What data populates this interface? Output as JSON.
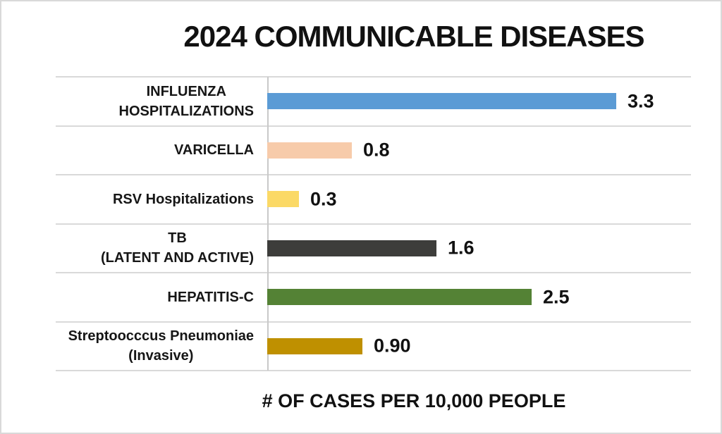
{
  "chart_data": {
    "type": "bar",
    "orientation": "horizontal",
    "title": "2024 COMMUNICABLE DISEASES",
    "xlabel": "# OF CASES PER 10,000 PEOPLE",
    "ylabel": "",
    "xlim": [
      0,
      4
    ],
    "grid": true,
    "legend": "none",
    "gridline_color": "#d9d9d9",
    "axis_line_color": "#c9c9c9",
    "text_color": "#111111",
    "rows": [
      {
        "label": "INFLUENZA\nHOSPITALIZATIONS",
        "value": 3.3,
        "display": "3.3",
        "color": "#5b9bd5"
      },
      {
        "label": "VARICELLA",
        "value": 0.8,
        "display": "0.8",
        "color": "#f7cbaa"
      },
      {
        "label": "RSV Hospitalizations",
        "value": 0.3,
        "display": "0.3",
        "color": "#fbd966"
      },
      {
        "label": "TB\n(LATENT AND ACTIVE)",
        "value": 1.6,
        "display": "1.6",
        "color": "#3d3d3b"
      },
      {
        "label": "HEPATITIS-C",
        "value": 2.5,
        "display": "2.5",
        "color": "#548235"
      },
      {
        "label": "Streptoocccus Pneumoniae\n(Invasive)",
        "value": 0.9,
        "display": "0.90",
        "color": "#bf9000"
      }
    ]
  }
}
